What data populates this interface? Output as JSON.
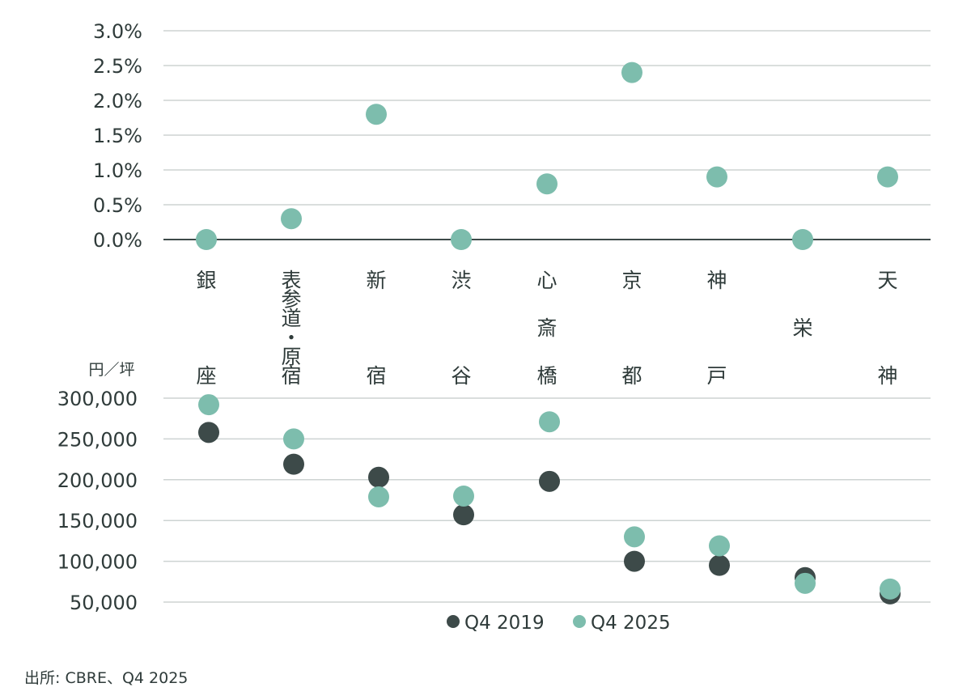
{
  "chart_data": [
    {
      "type": "scatter",
      "categories": [
        "銀座",
        "表参道・原宿",
        "新宿",
        "渋谷",
        "心斎橋",
        "京都",
        "神戸",
        "栄",
        "天神"
      ],
      "series": [
        {
          "values": [
            0.0,
            0.3,
            1.8,
            0.0,
            0.8,
            2.4,
            0.9,
            0.0,
            0.9
          ],
          "color": "#7dbdad"
        }
      ],
      "ylim": [
        0,
        3
      ],
      "yticks": [
        "3.0%",
        "2.5%",
        "2.0%",
        "1.5%",
        "1.0%",
        "0.5%",
        "0.0%"
      ],
      "ytick_values": [
        3.0,
        2.5,
        2.0,
        1.5,
        1.0,
        0.5,
        0.0
      ],
      "grid": true
    },
    {
      "type": "scatter",
      "unit_label": "円／坪",
      "categories": [
        "銀座",
        "表参道・原宿",
        "新宿",
        "渋谷",
        "心斎橋",
        "京都",
        "神戸",
        "栄",
        "天神"
      ],
      "series": [
        {
          "name": "Q4 2019",
          "values": [
            258000,
            219000,
            203000,
            157000,
            198000,
            100000,
            95000,
            80000,
            60000
          ],
          "color": "#3d4a49"
        },
        {
          "name": "Q4 2025",
          "values": [
            292000,
            250000,
            179000,
            180000,
            271000,
            130000,
            119000,
            73000,
            66000
          ],
          "color": "#7dbdad"
        }
      ],
      "ylim": [
        50000,
        300000
      ],
      "yticks": [
        "300,000",
        "250,000",
        "200,000",
        "150,000",
        "100,000",
        "50,000"
      ],
      "ytick_values": [
        300000,
        250000,
        200000,
        150000,
        100000,
        50000
      ],
      "grid": true,
      "legend_position": "bottom-center"
    }
  ],
  "category_lines": [
    [
      "銀",
      "座"
    ],
    [
      "表",
      "参",
      "道",
      "・",
      "原",
      "宿"
    ],
    [
      "新",
      "宿"
    ],
    [
      "渋",
      "谷"
    ],
    [
      "心",
      "斎",
      "橋"
    ],
    [
      "京",
      "都"
    ],
    [
      "神",
      "戸"
    ],
    [
      "栄"
    ],
    [
      "天",
      "神"
    ]
  ],
  "source": "出所: CBRE、Q4 2025"
}
